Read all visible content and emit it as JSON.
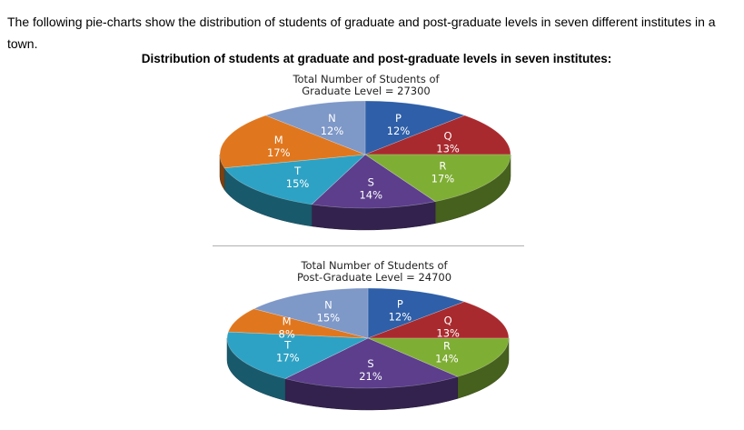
{
  "intro": "The following pie-charts show the distribution of students of graduate and post-graduate levels in seven different institutes in a town.",
  "heading": "Distribution of students at graduate and post-graduate levels in seven institutes:",
  "chart_data": [
    {
      "type": "pie",
      "title_line1": "Total Number of Students of",
      "title_line2": "Graduate Level = 27300",
      "categories": [
        "P",
        "Q",
        "R",
        "S",
        "T",
        "M",
        "N"
      ],
      "values": [
        12,
        13,
        17,
        14,
        15,
        17,
        12
      ],
      "value_labels": [
        "12%",
        "13%",
        "17%",
        "14%",
        "15%",
        "17%",
        "12%"
      ],
      "total": 27300
    },
    {
      "type": "pie",
      "title_line1": "Total Number of Students of",
      "title_line2": "Post-Graduate Level = 24700",
      "categories": [
        "P",
        "Q",
        "R",
        "S",
        "T",
        "M",
        "N"
      ],
      "values": [
        12,
        13,
        14,
        21,
        17,
        8,
        15
      ],
      "value_labels": [
        "12%",
        "13%",
        "14%",
        "21%",
        "17%",
        "8%",
        "15%"
      ],
      "total": 24700
    }
  ],
  "colors": {
    "P": "#2E5FA8",
    "Q": "#A92A2E",
    "R": "#7FAE34",
    "S": "#5C3E8C",
    "T": "#2EA2C4",
    "M": "#E0771E",
    "N": "#7E98C8"
  }
}
